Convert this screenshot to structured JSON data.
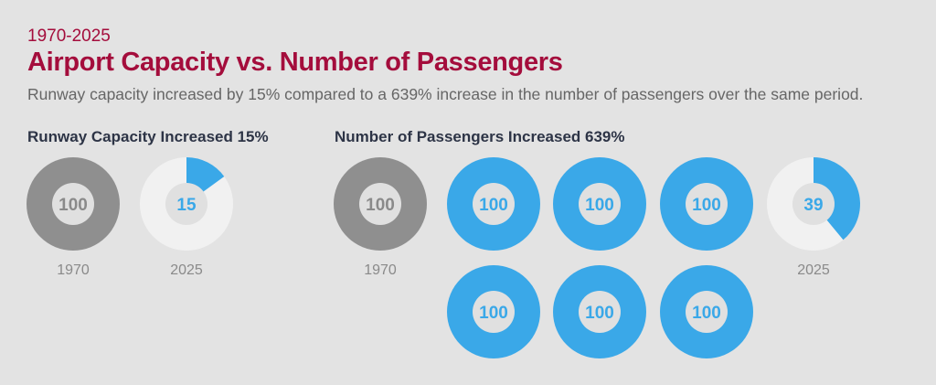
{
  "period": "1970-2025",
  "title": "Airport Capacity vs. Number of Passengers",
  "subtitle": "Runway capacity increased by 15% compared to a 639% increase in the number of passengers over the same period.",
  "colors": {
    "title": "#a40d3c",
    "base_year": "#8f8f8f",
    "increase": "#3aa8e8",
    "remainder": "#f1f1f1",
    "center": "#e0e0e0",
    "background": "#e3e3e3"
  },
  "chart_data": [
    {
      "type": "pie",
      "title": "Runway Capacity Increased 15%",
      "groups": [
        {
          "label": "1970",
          "donuts": [
            {
              "value": 100,
              "kind": "base"
            }
          ]
        },
        {
          "label": "2025",
          "donuts": [
            {
              "value": 15,
              "kind": "increase"
            }
          ]
        }
      ]
    },
    {
      "type": "pie",
      "title": "Number of Passengers Increased 639%",
      "groups": [
        {
          "label": "1970",
          "donuts": [
            {
              "value": 100,
              "kind": "base"
            }
          ]
        },
        {
          "label": "",
          "donuts": [
            {
              "value": 100,
              "kind": "increase"
            },
            {
              "value": 100,
              "kind": "increase"
            },
            {
              "value": 100,
              "kind": "increase"
            },
            {
              "value": 100,
              "kind": "increase"
            },
            {
              "value": 100,
              "kind": "increase"
            },
            {
              "value": 100,
              "kind": "increase"
            }
          ]
        },
        {
          "label": "2025",
          "donuts": [
            {
              "value": 39,
              "kind": "increase"
            }
          ]
        }
      ]
    }
  ]
}
